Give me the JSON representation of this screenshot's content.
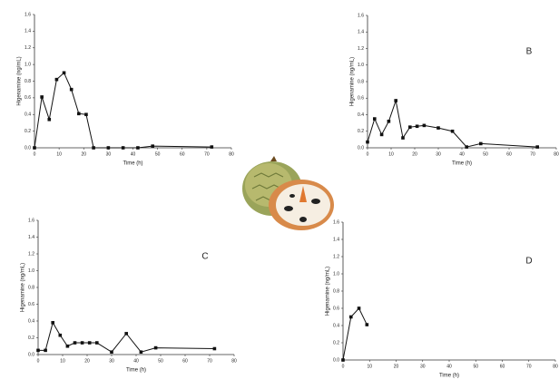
{
  "chart_data": [
    {
      "type": "line",
      "xlabel": "Time (h)",
      "ylabel": "Higenamine (ng/mL)",
      "color": "#111111",
      "x": [
        0,
        3,
        6,
        9,
        12,
        15,
        18,
        21,
        24,
        30,
        36,
        42,
        48,
        72
      ],
      "values": [
        0,
        0.61,
        0.34,
        0.82,
        0.9,
        0.7,
        0.41,
        0.4,
        0,
        0,
        0,
        0,
        0.02,
        0.01
      ],
      "xlim": [
        0,
        80
      ],
      "ylim": [
        0,
        1.6
      ],
      "xticks": [
        0,
        10,
        20,
        30,
        40,
        50,
        60,
        70,
        80
      ],
      "yticks": [
        {
          "value": 0,
          "label": "0.0"
        },
        0.2,
        0.4,
        0.6,
        0.8,
        {
          "value": 1,
          "label": "1.0"
        },
        1.2,
        1.4,
        1.6
      ]
    },
    {
      "type": "line",
      "title": "B",
      "xlabel": "Time (h)",
      "ylabel": "Higenamine (ng/mL)",
      "color": "#111111",
      "x": [
        0,
        3,
        6,
        9,
        12,
        15,
        18,
        21,
        24,
        30,
        36,
        42,
        48,
        72
      ],
      "values": [
        0.07,
        0.35,
        0.16,
        0.32,
        0.57,
        0.12,
        0.25,
        0.26,
        0.27,
        0.24,
        0.2,
        0.01,
        0.05,
        0.01
      ],
      "xlim": [
        0,
        80
      ],
      "ylim": [
        0,
        1.6
      ],
      "xticks": [
        0,
        10,
        20,
        30,
        40,
        50,
        60,
        70,
        80
      ],
      "yticks": [
        {
          "value": 0,
          "label": "0.0"
        },
        0.2,
        0.4,
        0.6,
        0.8,
        {
          "value": 1,
          "label": "1.0"
        },
        1.2,
        1.4,
        1.6
      ]
    },
    {
      "type": "line",
      "title": "C",
      "xlabel": "Time (h)",
      "ylabel": "Higenamine (ng/mL)",
      "color": "#111111",
      "x": [
        0,
        3,
        6,
        9,
        12,
        15,
        18,
        21,
        24,
        30,
        36,
        42,
        48,
        72
      ],
      "values": [
        0.05,
        0.05,
        0.38,
        0.23,
        0.1,
        0.14,
        0.14,
        0.14,
        0.14,
        0.03,
        0.25,
        0.03,
        0.08,
        0.07
      ],
      "xlim": [
        0,
        80
      ],
      "ylim": [
        0,
        1.6
      ],
      "xticks": [
        0,
        10,
        20,
        30,
        40,
        50,
        60,
        70,
        80
      ],
      "yticks": [
        {
          "value": 0,
          "label": "0.0"
        },
        0.2,
        0.4,
        0.6,
        0.8,
        {
          "value": 1,
          "label": "1.0"
        },
        1.2,
        1.4,
        1.6
      ]
    },
    {
      "type": "line",
      "title": "D",
      "xlabel": "Time (h)",
      "ylabel": "Higenamine (ng/mL)",
      "color": "#111111",
      "x": [
        0,
        3,
        6,
        9
      ],
      "values": [
        0,
        0.5,
        0.6,
        0.41
      ],
      "xlim": [
        0,
        80
      ],
      "ylim": [
        0,
        1.6
      ],
      "xticks": [
        0,
        10,
        20,
        30,
        40,
        50,
        60,
        70,
        80
      ],
      "yticks": [
        {
          "value": 0,
          "label": "0.0"
        },
        0.2,
        0.4,
        0.6,
        0.8,
        {
          "value": 1,
          "label": "1.0"
        },
        1.2,
        1.4,
        1.6
      ]
    }
  ]
}
